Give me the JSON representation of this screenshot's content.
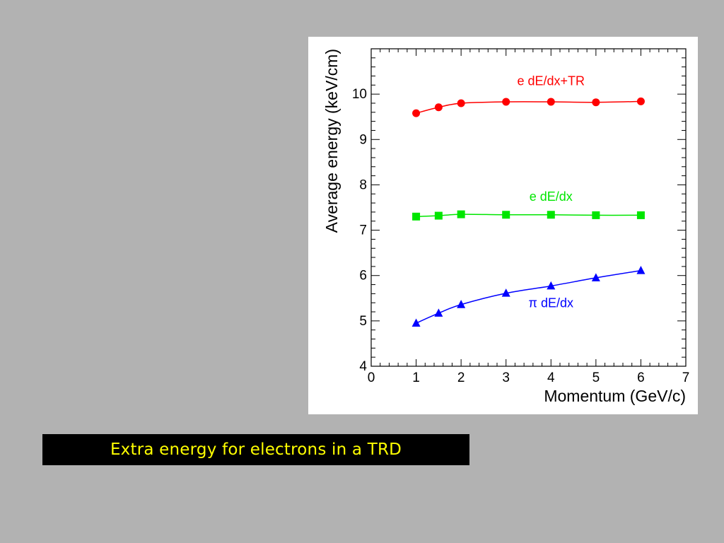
{
  "caption": "Extra energy for electrons in a TRD",
  "colors": {
    "background": "#b2b2b2",
    "caption_bg": "#000000",
    "caption_text": "#ffff00"
  },
  "chart_data": {
    "type": "line",
    "title": "",
    "xlabel": "Momentum (GeV/c)",
    "ylabel": "Average energy (keV/cm)",
    "xlim": [
      0,
      7
    ],
    "ylim": [
      4,
      11
    ],
    "xticks": [
      "0",
      "1",
      "2",
      "3",
      "4",
      "5",
      "6",
      "7"
    ],
    "yticks": [
      "4",
      "5",
      "6",
      "7",
      "8",
      "9",
      "10"
    ],
    "grid": false,
    "series": [
      {
        "name": "e dE/dx+TR",
        "color": "#ff0000",
        "marker": "circle",
        "x": [
          1,
          1.5,
          2,
          3,
          4,
          5,
          6
        ],
        "y": [
          9.58,
          9.71,
          9.8,
          9.83,
          9.83,
          9.82,
          9.84
        ]
      },
      {
        "name": "e dE/dx",
        "color": "#00e600",
        "marker": "square",
        "x": [
          1,
          1.5,
          2,
          3,
          4,
          5,
          6
        ],
        "y": [
          7.3,
          7.32,
          7.35,
          7.34,
          7.34,
          7.33,
          7.33
        ]
      },
      {
        "name": "π dE/dx",
        "color": "#0000ff",
        "marker": "triangle",
        "x": [
          1,
          1.5,
          2,
          3,
          4,
          5,
          6
        ],
        "y": [
          4.95,
          5.17,
          5.36,
          5.61,
          5.77,
          5.95,
          6.11
        ]
      }
    ]
  }
}
